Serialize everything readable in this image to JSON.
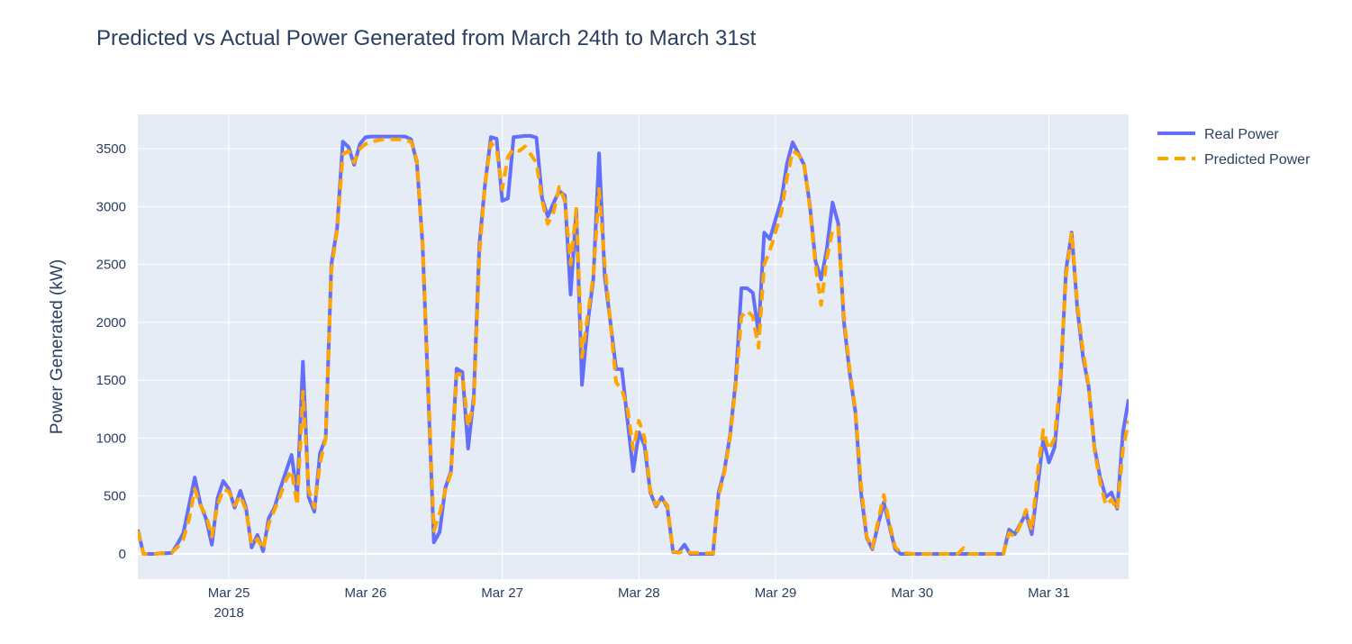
{
  "chart_data": {
    "type": "line",
    "title": "Predicted vs Actual Power Generated from March 24th to March 31st",
    "xlabel": "",
    "ylabel": "Power Generated (kW)",
    "ylim": [
      -218,
      3796
    ],
    "xlim": [
      "2018-03-24 08:00",
      "2018-03-31 14:00"
    ],
    "grid": true,
    "legend_position": "top-right outside",
    "yticks": [
      0,
      500,
      1000,
      1500,
      2000,
      2500,
      3000,
      3500
    ],
    "xticks": [
      {
        "date": "2018-03-25 00:00",
        "label": "Mar 25",
        "sublabel": "2018"
      },
      {
        "date": "2018-03-26 00:00",
        "label": "Mar 26"
      },
      {
        "date": "2018-03-27 00:00",
        "label": "Mar 27"
      },
      {
        "date": "2018-03-28 00:00",
        "label": "Mar 28"
      },
      {
        "date": "2018-03-29 00:00",
        "label": "Mar 29"
      },
      {
        "date": "2018-03-30 00:00",
        "label": "Mar 30"
      },
      {
        "date": "2018-03-31 00:00",
        "label": "Mar 31"
      }
    ],
    "x": [
      "2018-03-24 08:00",
      "2018-03-24 09:00",
      "2018-03-24 10:00",
      "2018-03-24 11:00",
      "2018-03-24 12:00",
      "2018-03-24 13:00",
      "2018-03-24 14:00",
      "2018-03-24 15:00",
      "2018-03-24 16:00",
      "2018-03-24 17:00",
      "2018-03-24 18:00",
      "2018-03-24 19:00",
      "2018-03-24 20:00",
      "2018-03-24 21:00",
      "2018-03-24 22:00",
      "2018-03-24 23:00",
      "2018-03-25 00:00",
      "2018-03-25 01:00",
      "2018-03-25 02:00",
      "2018-03-25 03:00",
      "2018-03-25 04:00",
      "2018-03-25 05:00",
      "2018-03-25 06:00",
      "2018-03-25 07:00",
      "2018-03-25 08:00",
      "2018-03-25 09:00",
      "2018-03-25 10:00",
      "2018-03-25 11:00",
      "2018-03-25 12:00",
      "2018-03-25 13:00",
      "2018-03-25 14:00",
      "2018-03-25 15:00",
      "2018-03-25 16:00",
      "2018-03-25 17:00",
      "2018-03-25 18:00",
      "2018-03-25 19:00",
      "2018-03-25 20:00",
      "2018-03-25 21:00",
      "2018-03-25 22:00",
      "2018-03-25 23:00",
      "2018-03-26 00:00",
      "2018-03-26 01:00",
      "2018-03-26 02:00",
      "2018-03-26 03:00",
      "2018-03-26 04:00",
      "2018-03-26 05:00",
      "2018-03-26 06:00",
      "2018-03-26 07:00",
      "2018-03-26 08:00",
      "2018-03-26 09:00",
      "2018-03-26 10:00",
      "2018-03-26 11:00",
      "2018-03-26 12:00",
      "2018-03-26 13:00",
      "2018-03-26 14:00",
      "2018-03-26 15:00",
      "2018-03-26 16:00",
      "2018-03-26 17:00",
      "2018-03-26 18:00",
      "2018-03-26 19:00",
      "2018-03-26 20:00",
      "2018-03-26 21:00",
      "2018-03-26 22:00",
      "2018-03-26 23:00",
      "2018-03-27 00:00",
      "2018-03-27 01:00",
      "2018-03-27 02:00",
      "2018-03-27 03:00",
      "2018-03-27 04:00",
      "2018-03-27 05:00",
      "2018-03-27 06:00",
      "2018-03-27 07:00",
      "2018-03-27 08:00",
      "2018-03-27 09:00",
      "2018-03-27 10:00",
      "2018-03-27 11:00",
      "2018-03-27 12:00",
      "2018-03-27 13:00",
      "2018-03-27 14:00",
      "2018-03-27 15:00",
      "2018-03-27 16:00",
      "2018-03-27 17:00",
      "2018-03-27 18:00",
      "2018-03-27 19:00",
      "2018-03-27 20:00",
      "2018-03-27 21:00",
      "2018-03-27 22:00",
      "2018-03-27 23:00",
      "2018-03-28 00:00",
      "2018-03-28 01:00",
      "2018-03-28 02:00",
      "2018-03-28 03:00",
      "2018-03-28 04:00",
      "2018-03-28 05:00",
      "2018-03-28 06:00",
      "2018-03-28 07:00",
      "2018-03-28 08:00",
      "2018-03-28 09:00",
      "2018-03-28 10:00",
      "2018-03-28 11:00",
      "2018-03-28 12:00",
      "2018-03-28 13:00",
      "2018-03-28 14:00",
      "2018-03-28 15:00",
      "2018-03-28 16:00",
      "2018-03-28 17:00",
      "2018-03-28 18:00",
      "2018-03-28 19:00",
      "2018-03-28 20:00",
      "2018-03-28 21:00",
      "2018-03-28 22:00",
      "2018-03-28 23:00",
      "2018-03-29 00:00",
      "2018-03-29 01:00",
      "2018-03-29 02:00",
      "2018-03-29 03:00",
      "2018-03-29 04:00",
      "2018-03-29 05:00",
      "2018-03-29 06:00",
      "2018-03-29 07:00",
      "2018-03-29 08:00",
      "2018-03-29 09:00",
      "2018-03-29 10:00",
      "2018-03-29 11:00",
      "2018-03-29 12:00",
      "2018-03-29 13:00",
      "2018-03-29 14:00",
      "2018-03-29 15:00",
      "2018-03-29 16:00",
      "2018-03-29 17:00",
      "2018-03-29 18:00",
      "2018-03-29 19:00",
      "2018-03-29 20:00",
      "2018-03-29 21:00",
      "2018-03-29 22:00",
      "2018-03-29 23:00",
      "2018-03-30 00:00",
      "2018-03-30 01:00",
      "2018-03-30 02:00",
      "2018-03-30 03:00",
      "2018-03-30 04:00",
      "2018-03-30 05:00",
      "2018-03-30 06:00",
      "2018-03-30 07:00",
      "2018-03-30 08:00",
      "2018-03-30 09:00",
      "2018-03-30 10:00",
      "2018-03-30 11:00",
      "2018-03-30 12:00",
      "2018-03-30 13:00",
      "2018-03-30 14:00",
      "2018-03-30 15:00",
      "2018-03-30 16:00",
      "2018-03-30 17:00",
      "2018-03-30 18:00",
      "2018-03-30 19:00",
      "2018-03-30 20:00",
      "2018-03-30 21:00",
      "2018-03-30 22:00",
      "2018-03-30 23:00",
      "2018-03-31 00:00",
      "2018-03-31 01:00",
      "2018-03-31 02:00",
      "2018-03-31 03:00",
      "2018-03-31 04:00",
      "2018-03-31 05:00",
      "2018-03-31 06:00",
      "2018-03-31 07:00",
      "2018-03-31 08:00",
      "2018-03-31 09:00",
      "2018-03-31 10:00",
      "2018-03-31 11:00",
      "2018-03-31 12:00",
      "2018-03-31 13:00",
      "2018-03-31 14:00"
    ],
    "series": [
      {
        "name": "Real Power",
        "color": "#636efa",
        "dash": "solid",
        "values": [
          210,
          0,
          0,
          0,
          5,
          5,
          10,
          90,
          180,
          420,
          660,
          430,
          300,
          80,
          480,
          630,
          560,
          400,
          545,
          400,
          55,
          165,
          25,
          310,
          400,
          560,
          710,
          855,
          505,
          1660,
          490,
          365,
          870,
          1000,
          2500,
          2815,
          3560,
          3515,
          3360,
          3540,
          3600,
          3605,
          3605,
          3605,
          3605,
          3605,
          3605,
          3605,
          3580,
          3380,
          2680,
          1400,
          100,
          190,
          570,
          715,
          1600,
          1570,
          910,
          1360,
          2680,
          3200,
          3600,
          3585,
          3050,
          3070,
          3600,
          3605,
          3610,
          3610,
          3595,
          3070,
          2915,
          3030,
          3135,
          3095,
          2240,
          2970,
          1460,
          1985,
          2370,
          3460,
          2395,
          2000,
          1595,
          1595,
          1150,
          715,
          1050,
          935,
          530,
          410,
          490,
          400,
          15,
          15,
          80,
          0,
          0,
          0,
          0,
          0,
          530,
          715,
          1025,
          1490,
          2295,
          2295,
          2255,
          1905,
          2775,
          2720,
          2890,
          3055,
          3370,
          3555,
          3460,
          3360,
          3020,
          2530,
          2370,
          2630,
          3035,
          2855,
          2005,
          1570,
          1230,
          530,
          140,
          40,
          250,
          445,
          240,
          40,
          0,
          0,
          0,
          0,
          0,
          0,
          0,
          0,
          0,
          0,
          0,
          0,
          0,
          0,
          0,
          0,
          0,
          0,
          0,
          210,
          170,
          260,
          350,
          170,
          580,
          990,
          790,
          920,
          1440,
          2450,
          2775,
          2115,
          1700,
          1440,
          920,
          660,
          490,
          530,
          390,
          1050,
          1335
        ]
      },
      {
        "name": "Predicted Power",
        "color": "#ffa500",
        "dash": "dash",
        "values": [
          200,
          0,
          0,
          0,
          5,
          10,
          15,
          60,
          130,
          300,
          560,
          420,
          330,
          150,
          420,
          560,
          540,
          420,
          500,
          380,
          80,
          130,
          40,
          260,
          380,
          500,
          640,
          720,
          420,
          1400,
          550,
          400,
          780,
          1000,
          2450,
          2800,
          3450,
          3480,
          3380,
          3500,
          3540,
          3560,
          3570,
          3580,
          3580,
          3580,
          3580,
          3575,
          3560,
          3400,
          2700,
          1450,
          200,
          350,
          550,
          700,
          1550,
          1550,
          1100,
          1300,
          2600,
          3200,
          3550,
          3500,
          3150,
          3430,
          3500,
          3480,
          3520,
          3450,
          3380,
          3050,
          2850,
          2950,
          3170,
          3050,
          2500,
          2980,
          1700,
          2050,
          2400,
          3150,
          2500,
          2000,
          1480,
          1420,
          1250,
          900,
          1150,
          1000,
          550,
          420,
          480,
          420,
          20,
          10,
          30,
          10,
          10,
          5,
          5,
          5,
          500,
          700,
          1000,
          1450,
          2050,
          2100,
          2050,
          1780,
          2500,
          2620,
          2780,
          2950,
          3250,
          3480,
          3450,
          3370,
          3000,
          2500,
          2150,
          2550,
          2800,
          2820,
          2050,
          1600,
          1250,
          600,
          150,
          50,
          280,
          510,
          260,
          60,
          10,
          5,
          0,
          0,
          0,
          0,
          0,
          0,
          0,
          0,
          0,
          50,
          0,
          0,
          0,
          0,
          0,
          0,
          0,
          180,
          150,
          250,
          380,
          200,
          700,
          1070,
          900,
          1000,
          1500,
          2400,
          2780,
          2150,
          1750,
          1450,
          900,
          620,
          420,
          470,
          380,
          900,
          1150
        ]
      }
    ]
  }
}
